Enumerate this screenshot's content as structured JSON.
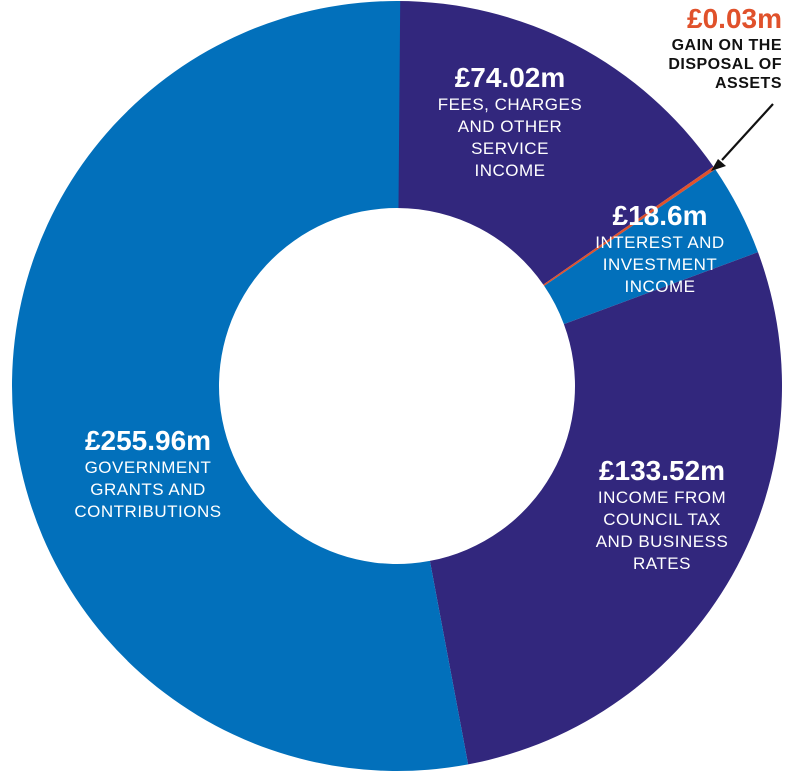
{
  "chart_data": {
    "type": "pie",
    "donut": true,
    "unit": "£m",
    "slices": [
      {
        "label": "FEES, CHARGES AND OTHER SERVICE INCOME",
        "value": 74.02,
        "display": "£74.02m",
        "color": "#32277d"
      },
      {
        "label": "GAIN ON THE DISPOSAL OF ASSETS",
        "value": 0.03,
        "display": "£0.03m",
        "color": "#e0512b"
      },
      {
        "label": "INTEREST AND INVESTMENT INCOME",
        "value": 18.6,
        "display": "£18.6m",
        "color": "#0270bb"
      },
      {
        "label": "INCOME FROM COUNCIL TAX AND BUSINESS RATES",
        "value": 133.52,
        "display": "£133.52m",
        "color": "#32277d"
      },
      {
        "label": "GOVERNMENT GRANTS AND CONTRIBUTIONS",
        "value": 255.96,
        "display": "£255.96m",
        "color": "#0270bb"
      }
    ]
  },
  "labels": {
    "fees": {
      "value": "£74.02m",
      "desc": "FEES, CHARGES\nAND OTHER\nSERVICE\nINCOME"
    },
    "gain": {
      "value": "£0.03m",
      "desc": "GAIN ON THE\nDISPOSAL OF\nASSETS"
    },
    "interest": {
      "value": "£18.6m",
      "desc": "INTEREST AND\nINVESTMENT\nINCOME"
    },
    "council": {
      "value": "£133.52m",
      "desc": "INCOME FROM\nCOUNCIL TAX\nAND BUSINESS\nRATES"
    },
    "govt": {
      "value": "£255.96m",
      "desc": "GOVERNMENT\nGRANTS AND\nCONTRIBUTIONS"
    }
  },
  "colors": {
    "navy": "#32277d",
    "blue": "#0270bb",
    "accent": "#e0512b",
    "background": "#ffffff"
  }
}
